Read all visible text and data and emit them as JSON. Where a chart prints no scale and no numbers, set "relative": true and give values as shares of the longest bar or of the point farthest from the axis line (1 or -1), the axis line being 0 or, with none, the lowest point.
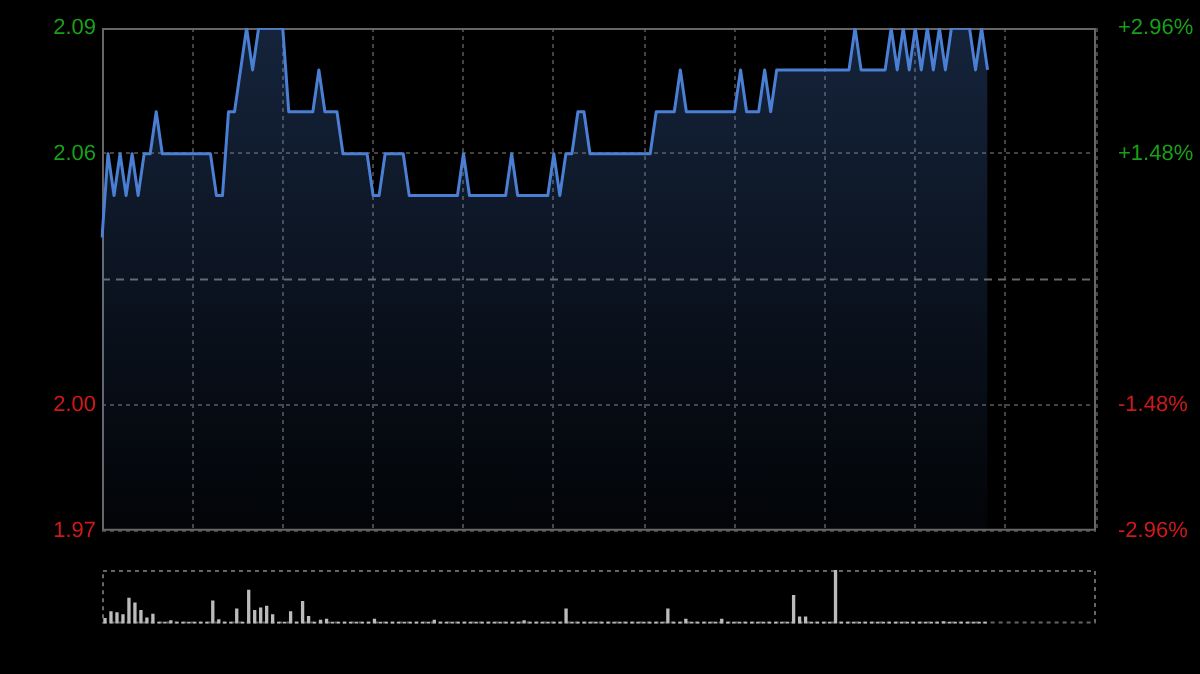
{
  "chart_data": [
    {
      "type": "area",
      "tick_labels": "y",
      "grid": true,
      "marker": "none",
      "categories": [
        null,
        null,
        null,
        null,
        null,
        null,
        null,
        null,
        null,
        null,
        null,
        null,
        null,
        null,
        null,
        null,
        null,
        null,
        null,
        null,
        null,
        null,
        null,
        null,
        null,
        null,
        null,
        null,
        null,
        null,
        null,
        null,
        null,
        null,
        null,
        null,
        null,
        null,
        null,
        null,
        null,
        null,
        null,
        null,
        null,
        null,
        null,
        null,
        null,
        null,
        null,
        null,
        null,
        null,
        null,
        null,
        null,
        null,
        null,
        null,
        null,
        null,
        null,
        null,
        null,
        null,
        null,
        null,
        null,
        null,
        null,
        null,
        null,
        null,
        null,
        null,
        null,
        null,
        null,
        null,
        null,
        null,
        null,
        null,
        null,
        null,
        null,
        null,
        null,
        null,
        null,
        null,
        null,
        null,
        null,
        null,
        null,
        null,
        null,
        null,
        null,
        null,
        null,
        null,
        null,
        null,
        null,
        null,
        null,
        null,
        null,
        null,
        null,
        null,
        null,
        null,
        null,
        null,
        null,
        null,
        null,
        null,
        null,
        null,
        null,
        null,
        null,
        null,
        null,
        null,
        null,
        null,
        null,
        null,
        null,
        null,
        null,
        null,
        null,
        null,
        null,
        null,
        null,
        null,
        null,
        null,
        null,
        null,
        null,
        null,
        null,
        null,
        null,
        null,
        null,
        null,
        null,
        null,
        null,
        null,
        null,
        null,
        null,
        null,
        null,
        null
      ],
      "series": [
        {
          "color": "#4a7fd4",
          "values": [
            2.04,
            2.06,
            2.05,
            2.06,
            2.05,
            2.06,
            2.05,
            2.06,
            2.06,
            2.07,
            2.06,
            2.06,
            2.06,
            2.06,
            2.06,
            2.06,
            2.06,
            2.06,
            2.06,
            2.05,
            2.05,
            2.07,
            2.07,
            2.08,
            2.09,
            2.08,
            2.09,
            2.09,
            2.09,
            2.09,
            2.09,
            2.07,
            2.07,
            2.07,
            2.07,
            2.07,
            2.08,
            2.07,
            2.07,
            2.07,
            2.06,
            2.06,
            2.06,
            2.06,
            2.06,
            2.05,
            2.05,
            2.06,
            2.06,
            2.06,
            2.06,
            2.05,
            2.05,
            2.05,
            2.05,
            2.05,
            2.05,
            2.05,
            2.05,
            2.05,
            2.06,
            2.05,
            2.05,
            2.05,
            2.05,
            2.05,
            2.05,
            2.05,
            2.06,
            2.05,
            2.05,
            2.05,
            2.05,
            2.05,
            2.05,
            2.06,
            2.05,
            2.06,
            2.06,
            2.07,
            2.07,
            2.06,
            2.06,
            2.06,
            2.06,
            2.06,
            2.06,
            2.06,
            2.06,
            2.06,
            2.06,
            2.06,
            2.07,
            2.07,
            2.07,
            2.07,
            2.08,
            2.07,
            2.07,
            2.07,
            2.07,
            2.07,
            2.07,
            2.07,
            2.07,
            2.07,
            2.08,
            2.07,
            2.07,
            2.07,
            2.08,
            2.07,
            2.08,
            2.08,
            2.08,
            2.08,
            2.08,
            2.08,
            2.08,
            2.08,
            2.08,
            2.08,
            2.08,
            2.08,
            2.08,
            2.09,
            2.08,
            2.08,
            2.08,
            2.08,
            2.08,
            2.09,
            2.08,
            2.09,
            2.08,
            2.09,
            2.08,
            2.09,
            2.08,
            2.09,
            2.08,
            2.09,
            2.09,
            2.09,
            2.09,
            2.08,
            2.09,
            2.08,
            null,
            null,
            null,
            null,
            null,
            null,
            null,
            null,
            null,
            null,
            null,
            null,
            null,
            null,
            null,
            null,
            null,
            null
          ]
        }
      ],
      "ylim": [
        1.97,
        2.09
      ],
      "yticks": [
        2.09,
        2.06,
        {
          "value": 2,
          "label": "2.00"
        },
        1.97
      ],
      "y2lim": [
        -2.96,
        2.96
      ],
      "y2ticks": [
        {
          "value": 2.96,
          "label": "+2.96%"
        },
        {
          "value": 1.48,
          "label": "+1.48%"
        },
        {
          "value": -1.48,
          "label": "-1.48%"
        },
        {
          "value": -2.96,
          "label": "-2.96%"
        }
      ],
      "ref_lines": [
        {
          "axis": "y",
          "value": 2.03,
          "color": "#666666",
          "line_style": "dashed"
        }
      ]
    },
    {
      "type": "bar",
      "relative": true,
      "categories": [
        null,
        null,
        null,
        null,
        null,
        null,
        null,
        null,
        null,
        null,
        null,
        null,
        null,
        null,
        null,
        null,
        null,
        null,
        null,
        null,
        null,
        null,
        null,
        null,
        null,
        null,
        null,
        null,
        null,
        null,
        null,
        null,
        null,
        null,
        null,
        null,
        null,
        null,
        null,
        null,
        null,
        null,
        null,
        null,
        null,
        null,
        null,
        null,
        null,
        null,
        null,
        null,
        null,
        null,
        null,
        null,
        null,
        null,
        null,
        null,
        null,
        null,
        null,
        null,
        null,
        null,
        null,
        null,
        null,
        null,
        null,
        null,
        null,
        null,
        null,
        null,
        null,
        null,
        null,
        null,
        null,
        null,
        null,
        null,
        null,
        null,
        null,
        null,
        null,
        null,
        null,
        null,
        null,
        null,
        null,
        null,
        null,
        null,
        null,
        null,
        null,
        null,
        null,
        null,
        null,
        null,
        null,
        null,
        null,
        null,
        null,
        null,
        null,
        null,
        null,
        null,
        null,
        null,
        null,
        null,
        null,
        null,
        null,
        null,
        null,
        null,
        null,
        null,
        null,
        null,
        null,
        null,
        null,
        null,
        null,
        null,
        null,
        null,
        null,
        null,
        null,
        null,
        null,
        null,
        null,
        null,
        null,
        null,
        null,
        null,
        null,
        null,
        null,
        null,
        null,
        null,
        null,
        null,
        null,
        null,
        null,
        null,
        null,
        null,
        null,
        null
      ],
      "color": "#bbbbbb",
      "values": [
        0.09,
        0.22,
        0.2,
        0.16,
        0.47,
        0.38,
        0.24,
        0.1,
        0.17,
        0.02,
        0.02,
        0.05,
        0.02,
        0.02,
        0.02,
        0.02,
        0.02,
        0.02,
        0.42,
        0.07,
        0.02,
        0.02,
        0.27,
        0.02,
        0.62,
        0.24,
        0.29,
        0.32,
        0.16,
        0.02,
        0.02,
        0.22,
        0.02,
        0.41,
        0.13,
        0.02,
        0.06,
        0.08,
        0.02,
        0.02,
        0.02,
        0.02,
        0.02,
        0.02,
        0.02,
        0.08,
        0.02,
        0.02,
        0.02,
        0.02,
        0.02,
        0.02,
        0.02,
        0.02,
        0.02,
        0.06,
        0.02,
        0.02,
        0.02,
        0.02,
        0.02,
        0.02,
        0.02,
        0.02,
        0.02,
        0.02,
        0.02,
        0.02,
        0.02,
        0.02,
        0.05,
        0.02,
        0.02,
        0.02,
        0.02,
        0.02,
        0.02,
        0.27,
        0.02,
        0.02,
        0.02,
        0.02,
        0.02,
        0.02,
        0.02,
        0.02,
        0.02,
        0.02,
        0.02,
        0.02,
        0.02,
        0.02,
        0.02,
        0.02,
        0.27,
        0.02,
        0.02,
        0.08,
        0.02,
        0.02,
        0.02,
        0.02,
        0.02,
        0.08,
        0.02,
        0.02,
        0.02,
        0.02,
        0.02,
        0.02,
        0.02,
        0.02,
        0.02,
        0.02,
        0.02,
        0.52,
        0.12,
        0.12,
        0.02,
        0.02,
        0.02,
        0.02,
        1,
        0.02,
        0.02,
        0.02,
        0.02,
        0.02,
        0.02,
        0.02,
        0.02,
        0.02,
        0.02,
        0.02,
        0.02,
        0.02,
        0.02,
        0.02,
        0.02,
        0.02,
        0.03,
        0.02,
        0.02,
        0.02,
        0.02,
        0.02,
        0.02,
        0.02,
        null,
        null,
        null,
        null,
        null,
        null,
        null,
        null,
        null,
        null,
        null,
        null,
        null,
        null,
        null,
        null,
        null,
        null
      ]
    }
  ]
}
